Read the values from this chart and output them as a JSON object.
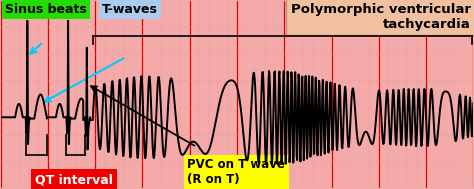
{
  "fig_width": 4.74,
  "fig_height": 1.89,
  "dpi": 100,
  "bg_color": "#f5aaaa",
  "grid_major_color": "#dd0000",
  "grid_minor_color": "#e8a0a0",
  "ecg_color": "black",
  "ecg_linewidth": 1.4,
  "label_sinus_beats": "Sinus beats",
  "label_sinus_color": "#22dd00",
  "label_twaves": "T-waves",
  "label_twaves_color": "#aaccee",
  "label_polymorphic": "Polymorphic ventricular\ntachycardia",
  "label_polymorphic_color": "#f0c0a0",
  "label_qt": "QT interval",
  "label_qt_color": "#ee0000",
  "label_pvc": "PVC on T wave\n(R on T)",
  "label_pvc_color": "#ffff00",
  "xmax": 10.0,
  "ymin": -0.45,
  "ymax": 0.95,
  "baseline": 0.08,
  "major_grid_step": 1.0,
  "minor_grid_step": 0.2
}
